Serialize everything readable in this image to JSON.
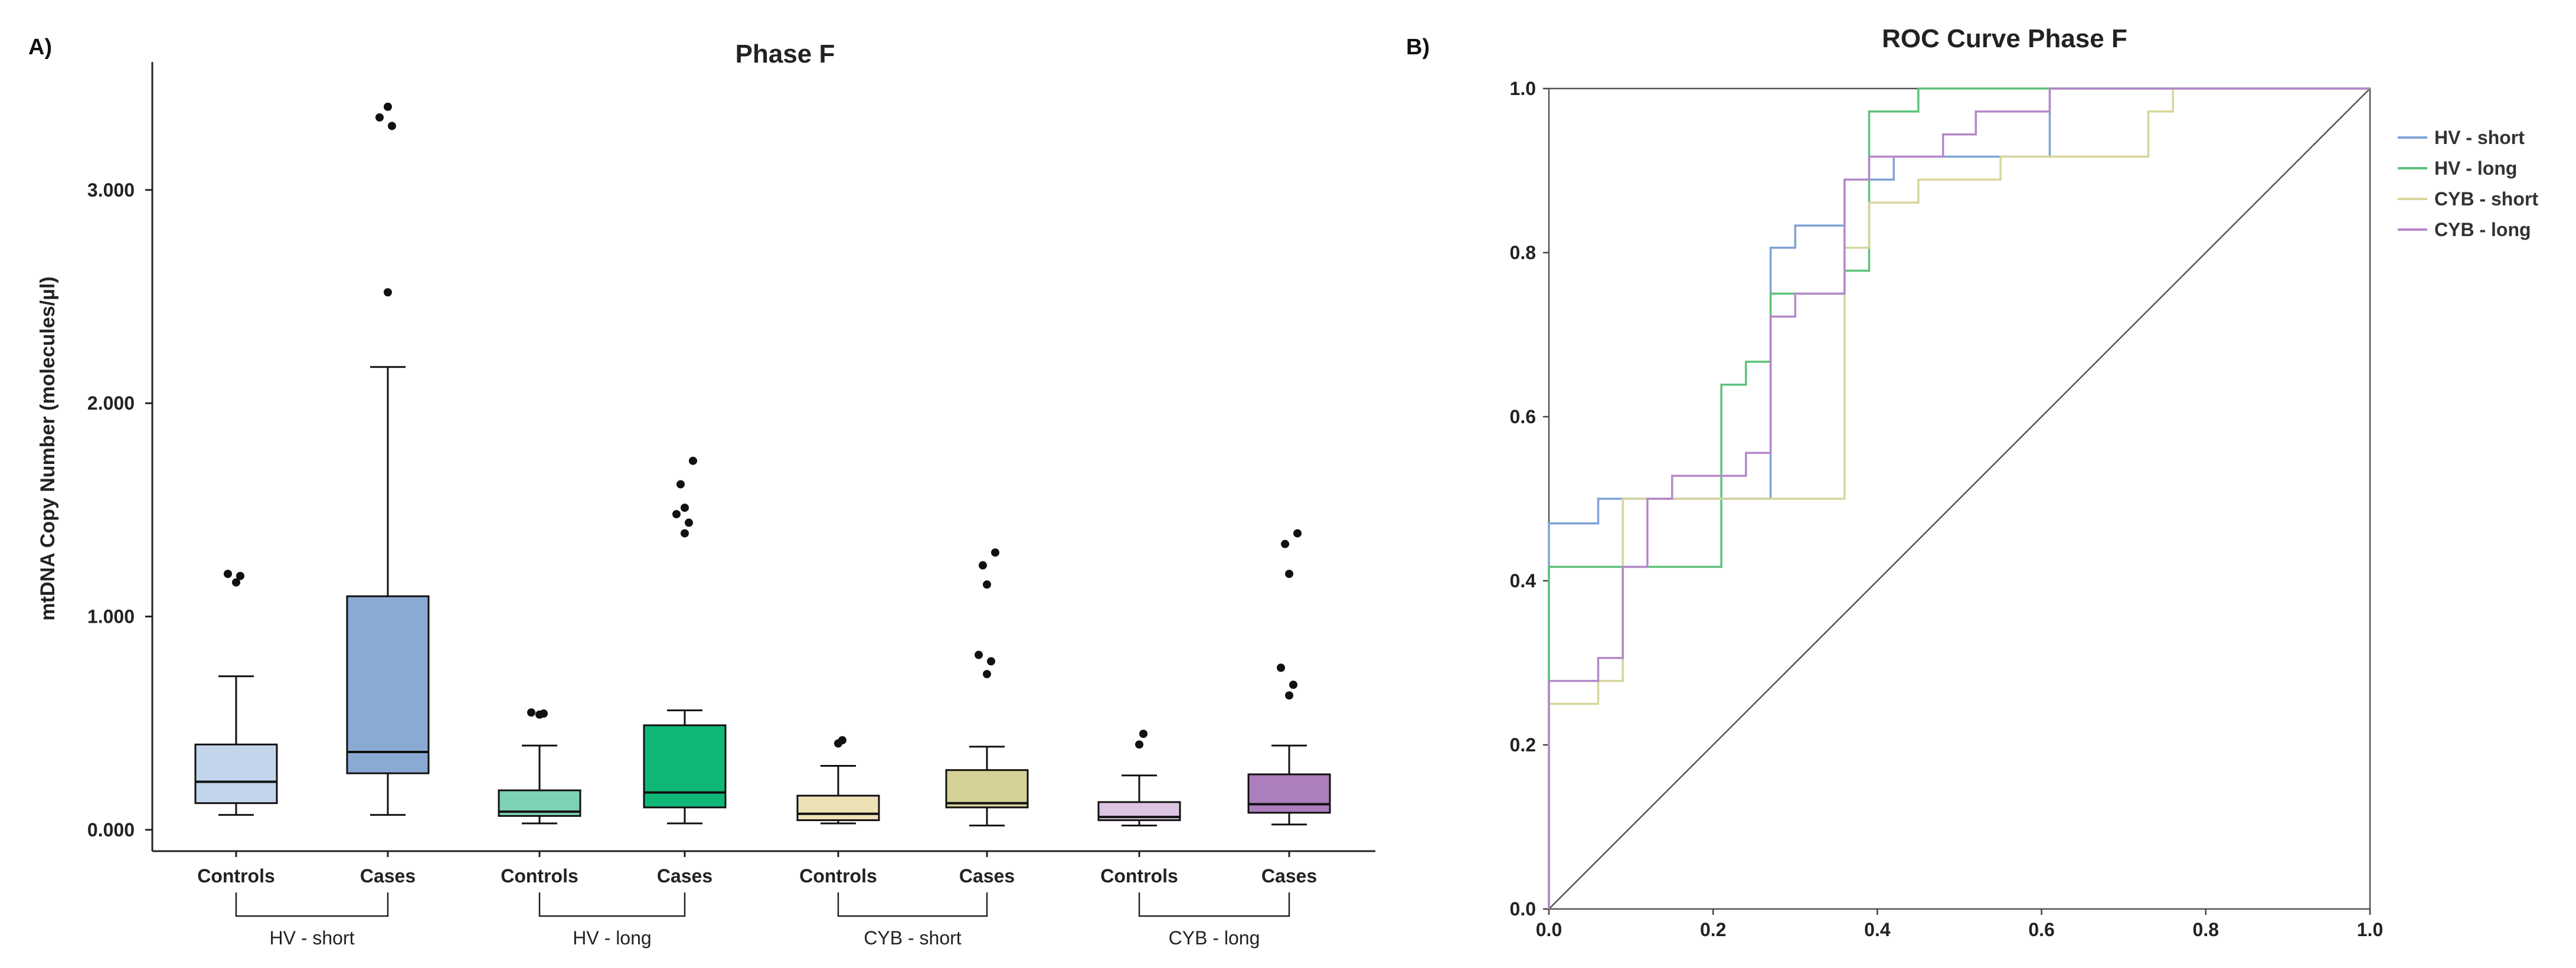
{
  "chart_data": [
    {
      "panel": "A)",
      "type": "box",
      "title": "Phase F",
      "xlabel": "",
      "ylabel": "mtDNA Copy Number (molecules/µl)",
      "ylim": [
        -100,
        3600
      ],
      "yticks": [
        {
          "value": 0,
          "label": "0.000"
        },
        {
          "value": 1000,
          "label": "1.000"
        },
        {
          "value": 2000,
          "label": "2.000"
        },
        {
          "value": 3000,
          "label": "3.000"
        }
      ],
      "groups": [
        {
          "name": "HV - short",
          "boxes": [
            {
              "label": "Controls",
              "color": "#c3d5ea",
              "whisker_low": 70,
              "q1": 125,
              "median": 225,
              "q3": 400,
              "whisker_high": 720,
              "outliers": [
                1160,
                1190,
                1200
              ]
            },
            {
              "label": "Cases",
              "color": "#8aaad4",
              "whisker_low": 70,
              "q1": 265,
              "median": 365,
              "q3": 1095,
              "whisker_high": 2170,
              "outliers": [
                2520,
                3300,
                3340,
                3390
              ]
            }
          ]
        },
        {
          "name": "HV - long",
          "boxes": [
            {
              "label": "Controls",
              "color": "#7ed2b4",
              "whisker_low": 30,
              "q1": 65,
              "median": 85,
              "q3": 185,
              "whisker_high": 395,
              "outliers": [
                540,
                545,
                550
              ]
            },
            {
              "label": "Cases",
              "color": "#10b878",
              "whisker_low": 30,
              "q1": 105,
              "median": 175,
              "q3": 490,
              "whisker_high": 560,
              "outliers": [
                1390,
                1440,
                1480,
                1510,
                1620,
                1730
              ]
            }
          ]
        },
        {
          "name": "CYB - short",
          "boxes": [
            {
              "label": "Controls",
              "color": "#ece2b6",
              "whisker_low": 30,
              "q1": 45,
              "median": 75,
              "q3": 160,
              "whisker_high": 300,
              "outliers": [
                405,
                420
              ]
            },
            {
              "label": "Cases",
              "color": "#d6d196",
              "whisker_low": 20,
              "q1": 105,
              "median": 125,
              "q3": 280,
              "whisker_high": 390,
              "outliers": [
                730,
                790,
                820,
                1150,
                1240,
                1300
              ]
            }
          ]
        },
        {
          "name": "CYB - long",
          "boxes": [
            {
              "label": "Controls",
              "color": "#dcc4e2",
              "whisker_low": 20,
              "q1": 45,
              "median": 60,
              "q3": 130,
              "whisker_high": 255,
              "outliers": [
                400,
                450
              ]
            },
            {
              "label": "Cases",
              "color": "#ad7ebc",
              "whisker_low": 25,
              "q1": 80,
              "median": 120,
              "q3": 260,
              "whisker_high": 395,
              "outliers": [
                630,
                680,
                760,
                1200,
                1340,
                1390
              ]
            }
          ]
        }
      ]
    },
    {
      "panel": "B)",
      "type": "line",
      "title": "ROC Curve Phase F",
      "xlabel": "",
      "ylabel": "",
      "xlim": [
        0,
        1
      ],
      "ylim": [
        0,
        1
      ],
      "xticks": [
        {
          "value": 0,
          "label": "0.0"
        },
        {
          "value": 0.2,
          "label": "0.2"
        },
        {
          "value": 0.4,
          "label": "0.4"
        },
        {
          "value": 0.6,
          "label": "0.6"
        },
        {
          "value": 0.8,
          "label": "0.8"
        },
        {
          "value": 1,
          "label": "1.0"
        }
      ],
      "yticks": [
        {
          "value": 0,
          "label": "0.0"
        },
        {
          "value": 0.2,
          "label": "0.2"
        },
        {
          "value": 0.4,
          "label": "0.4"
        },
        {
          "value": 0.6,
          "label": "0.6"
        },
        {
          "value": 0.8,
          "label": "0.8"
        },
        {
          "value": 1,
          "label": "1.0"
        }
      ],
      "reference_line": {
        "x": [
          0,
          1
        ],
        "y": [
          0,
          1
        ],
        "color": "#555555"
      },
      "series": [
        {
          "name": "HV - short",
          "color": "#7ea3d6",
          "x": [
            0,
            0,
            0.06,
            0.06,
            0.27,
            0.27,
            0.3,
            0.3,
            0.36,
            0.36,
            0.42,
            0.42,
            0.61,
            0.61,
            1.0
          ],
          "y": [
            0,
            0.47,
            0.47,
            0.5,
            0.5,
            0.806,
            0.806,
            0.833,
            0.833,
            0.889,
            0.889,
            0.917,
            0.917,
            1.0,
            1.0
          ]
        },
        {
          "name": "HV - long",
          "color": "#5dc27a",
          "x": [
            0,
            0,
            0.21,
            0.21,
            0.24,
            0.24,
            0.27,
            0.27,
            0.36,
            0.36,
            0.39,
            0.39,
            0.45,
            0.45,
            1.0
          ],
          "y": [
            0,
            0.417,
            0.417,
            0.639,
            0.639,
            0.667,
            0.667,
            0.75,
            0.75,
            0.778,
            0.778,
            0.972,
            0.972,
            1.0,
            1.0
          ]
        },
        {
          "name": "CYB - short",
          "color": "#d7d59b",
          "x": [
            0,
            0,
            0.06,
            0.06,
            0.09,
            0.09,
            0.36,
            0.36,
            0.39,
            0.39,
            0.45,
            0.45,
            0.55,
            0.55,
            0.73,
            0.73,
            0.76,
            0.76,
            1.0
          ],
          "y": [
            0,
            0.25,
            0.25,
            0.278,
            0.278,
            0.5,
            0.5,
            0.806,
            0.806,
            0.861,
            0.861,
            0.889,
            0.889,
            0.917,
            0.917,
            0.972,
            0.972,
            1.0,
            1.0
          ]
        },
        {
          "name": "CYB - long",
          "color": "#b687c9",
          "x": [
            0,
            0,
            0.06,
            0.06,
            0.09,
            0.09,
            0.12,
            0.12,
            0.15,
            0.15,
            0.24,
            0.24,
            0.27,
            0.27,
            0.3,
            0.3,
            0.36,
            0.36,
            0.39,
            0.39,
            0.48,
            0.48,
            0.52,
            0.52,
            0.61,
            0.61,
            1.0
          ],
          "y": [
            0,
            0.278,
            0.278,
            0.306,
            0.306,
            0.417,
            0.417,
            0.5,
            0.5,
            0.528,
            0.528,
            0.556,
            0.556,
            0.722,
            0.722,
            0.75,
            0.75,
            0.889,
            0.889,
            0.917,
            0.917,
            0.944,
            0.944,
            0.972,
            0.972,
            1.0,
            1.0
          ]
        }
      ],
      "legend_position": "top-right"
    }
  ]
}
